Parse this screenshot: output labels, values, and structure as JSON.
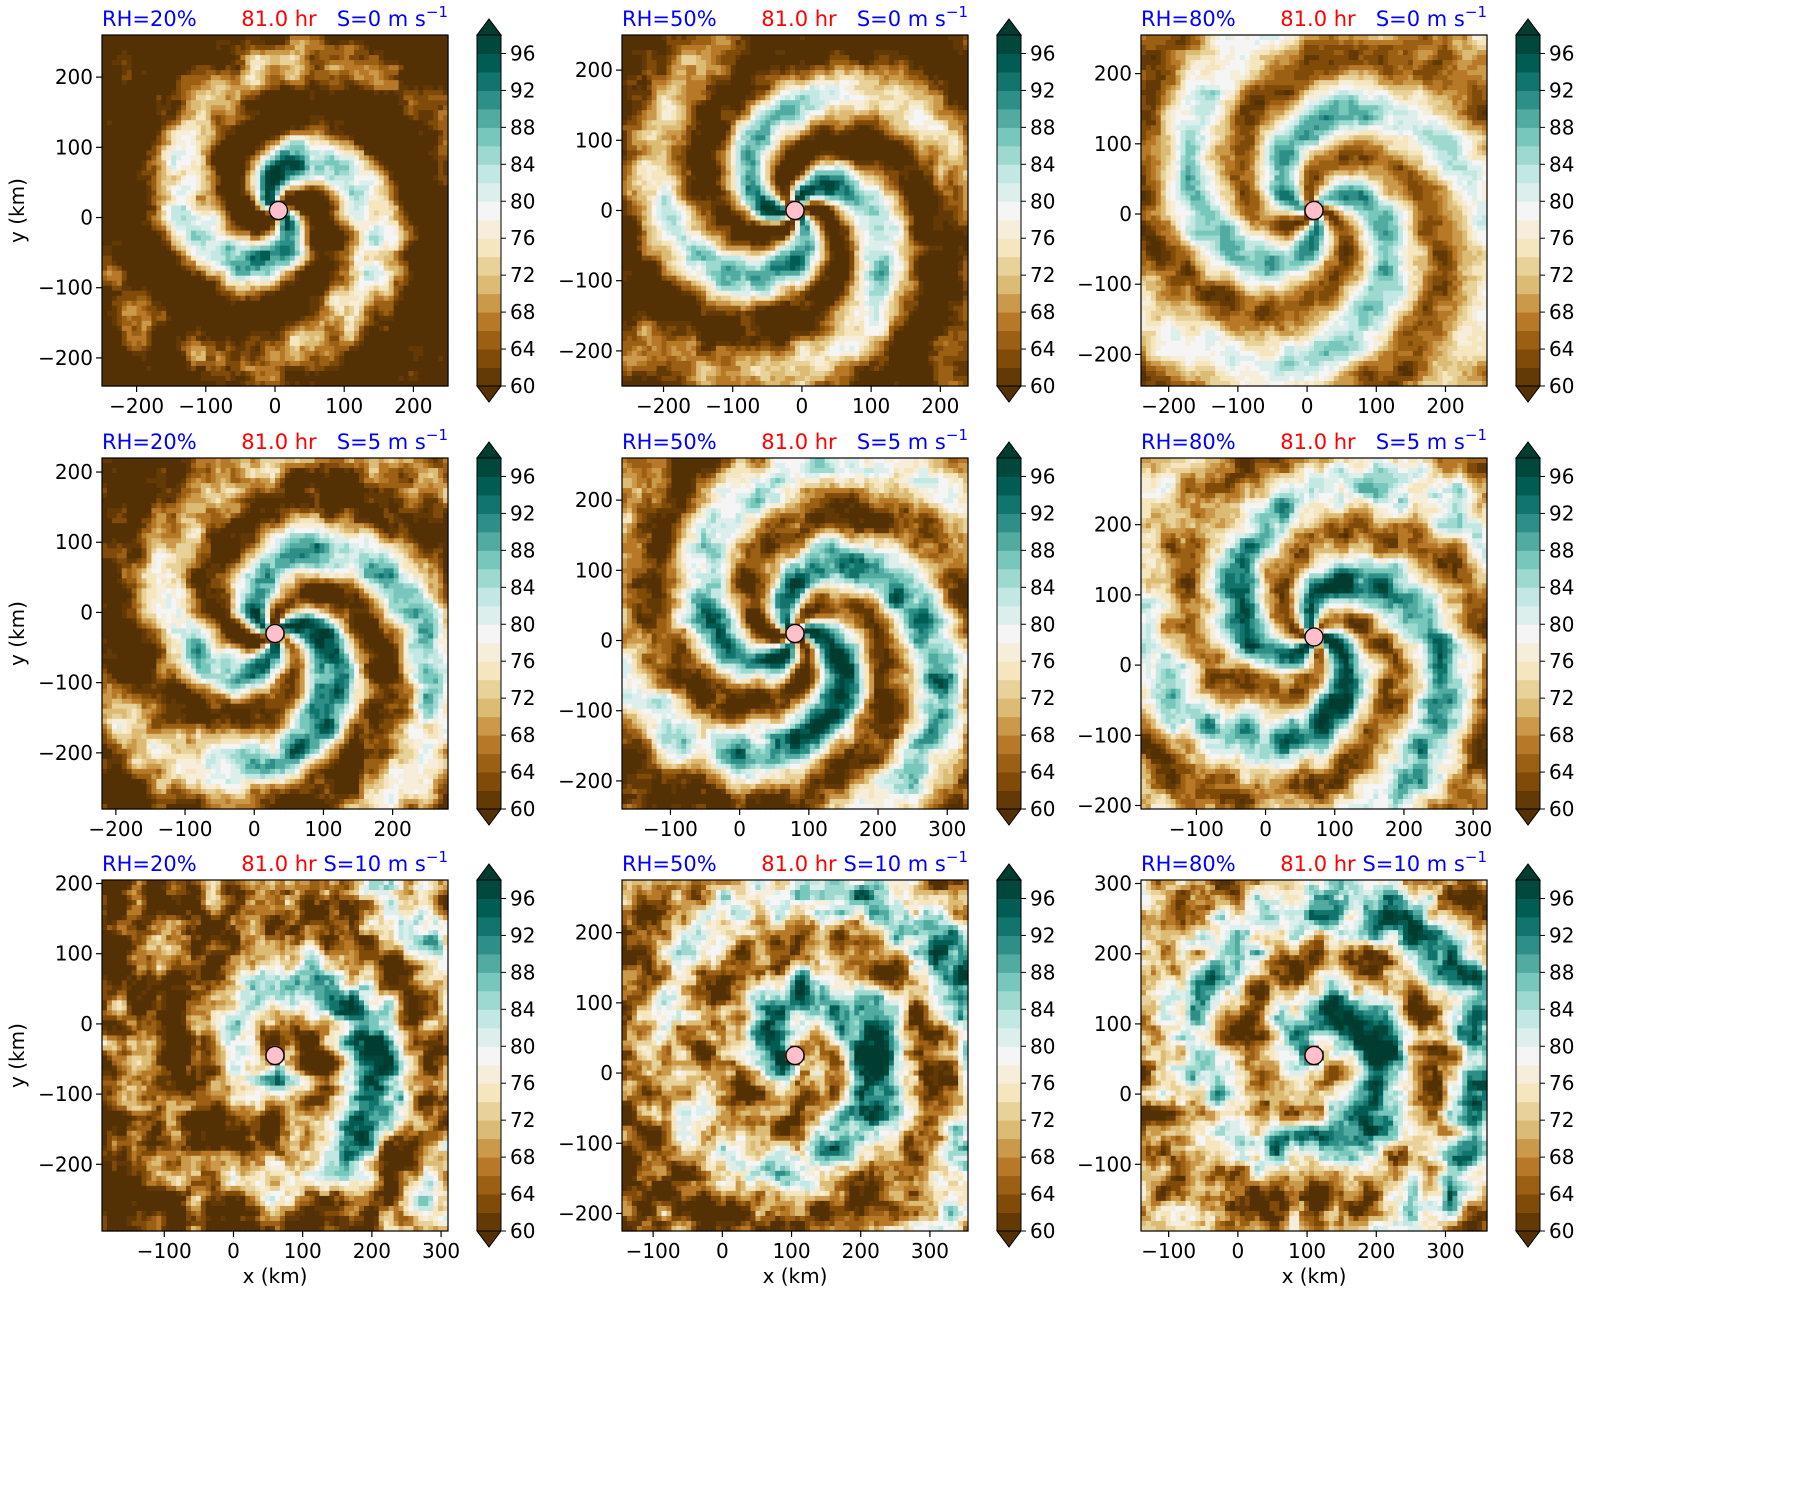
{
  "figure": {
    "colormap": "BrBG",
    "panel_time": "81.0 hr",
    "title_colors": {
      "rh": "#0000ff",
      "time": "#ff0000",
      "shear": "#0000ff"
    },
    "center_marker_color": "#ffc0cb"
  },
  "chart_data": [
    {
      "type": "heatmap",
      "title_rh": "RH=20%",
      "title_time": "81.0 hr",
      "title_shear": "S=0 m s",
      "title_shear_exp": "−1",
      "xlim": [
        -250,
        250
      ],
      "ylim": [
        -240,
        260
      ],
      "xticks": [
        -200,
        -100,
        0,
        100,
        200
      ],
      "xticklabels": [
        "−200",
        "−100",
        "0",
        "100",
        "200"
      ],
      "yticks": [
        -200,
        -100,
        0,
        100,
        200
      ],
      "yticklabels": [
        "−200",
        "−100",
        "0",
        "100",
        "200"
      ],
      "ylabel": "y (km)",
      "xlabel": "",
      "center": [
        5,
        10
      ],
      "pattern": "spiral-compact",
      "colorbar": {
        "ticks": [
          "96",
          "92",
          "88",
          "84",
          "80",
          "76",
          "72",
          "68",
          "64",
          "60"
        ],
        "range": [
          60,
          98
        ],
        "extend": "both"
      }
    },
    {
      "type": "heatmap",
      "title_rh": "RH=50%",
      "title_time": "81.0 hr",
      "title_shear": "S=0 m s",
      "title_shear_exp": "−1",
      "xlim": [
        -260,
        240
      ],
      "ylim": [
        -250,
        250
      ],
      "xticks": [
        -200,
        -100,
        0,
        100,
        200
      ],
      "xticklabels": [
        "−200",
        "−100",
        "0",
        "100",
        "200"
      ],
      "yticks": [
        -200,
        -100,
        0,
        100,
        200
      ],
      "yticklabels": [
        "−200",
        "−100",
        "0",
        "100",
        "200"
      ],
      "ylabel": "",
      "xlabel": "",
      "center": [
        -10,
        0
      ],
      "pattern": "spiral",
      "colorbar": {
        "ticks": [
          "96",
          "92",
          "88",
          "84",
          "80",
          "76",
          "72",
          "68",
          "64",
          "60"
        ],
        "range": [
          60,
          98
        ],
        "extend": "both"
      }
    },
    {
      "type": "heatmap",
      "title_rh": "RH=80%",
      "title_time": "81.0 hr",
      "title_shear": "S=0 m s",
      "title_shear_exp": "−1",
      "xlim": [
        -240,
        260
      ],
      "ylim": [
        -245,
        255
      ],
      "xticks": [
        -200,
        -100,
        0,
        100,
        200
      ],
      "xticklabels": [
        "−200",
        "−100",
        "0",
        "100",
        "200"
      ],
      "yticks": [
        -200,
        -100,
        0,
        100,
        200
      ],
      "yticklabels": [
        "−200",
        "−100",
        "0",
        "100",
        "200"
      ],
      "ylabel": "",
      "xlabel": "",
      "center": [
        10,
        5
      ],
      "pattern": "spiral-wide",
      "colorbar": {
        "ticks": [
          "96",
          "92",
          "88",
          "84",
          "80",
          "76",
          "72",
          "68",
          "64",
          "60"
        ],
        "range": [
          60,
          98
        ],
        "extend": "both"
      }
    },
    {
      "type": "heatmap",
      "title_rh": "RH=20%",
      "title_time": "81.0 hr",
      "title_shear": "S=5 m s",
      "title_shear_exp": "−1",
      "xlim": [
        -220,
        280
      ],
      "ylim": [
        -280,
        220
      ],
      "xticks": [
        -200,
        -100,
        0,
        100,
        200
      ],
      "xticklabels": [
        "−200",
        "−100",
        "0",
        "100",
        "200"
      ],
      "yticks": [
        -200,
        -100,
        0,
        100,
        200
      ],
      "yticklabels": [
        "−200",
        "−100",
        "0",
        "100",
        "200"
      ],
      "ylabel": "y (km)",
      "xlabel": "",
      "center": [
        30,
        -30
      ],
      "pattern": "sheared-light",
      "colorbar": {
        "ticks": [
          "96",
          "92",
          "88",
          "84",
          "80",
          "76",
          "72",
          "68",
          "64",
          "60"
        ],
        "range": [
          60,
          98
        ],
        "extend": "both"
      }
    },
    {
      "type": "heatmap",
      "title_rh": "RH=50%",
      "title_time": "81.0 hr",
      "title_shear": "S=5 m s",
      "title_shear_exp": "−1",
      "xlim": [
        -170,
        330
      ],
      "ylim": [
        -240,
        260
      ],
      "xticks": [
        -100,
        0,
        100,
        200,
        300
      ],
      "xticklabels": [
        "−100",
        "0",
        "100",
        "200",
        "300"
      ],
      "yticks": [
        -200,
        -100,
        0,
        100,
        200
      ],
      "yticklabels": [
        "−200",
        "−100",
        "0",
        "100",
        "200"
      ],
      "ylabel": "",
      "xlabel": "",
      "center": [
        80,
        10
      ],
      "pattern": "sheared",
      "colorbar": {
        "ticks": [
          "96",
          "92",
          "88",
          "84",
          "80",
          "76",
          "72",
          "68",
          "64",
          "60"
        ],
        "range": [
          60,
          98
        ],
        "extend": "both"
      }
    },
    {
      "type": "heatmap",
      "title_rh": "RH=80%",
      "title_time": "81.0 hr",
      "title_shear": "S=5 m s",
      "title_shear_exp": "−1",
      "xlim": [
        -180,
        320
      ],
      "ylim": [
        -205,
        295
      ],
      "xticks": [
        -100,
        0,
        100,
        200,
        300
      ],
      "xticklabels": [
        "−100",
        "0",
        "100",
        "200",
        "300"
      ],
      "yticks": [
        -200,
        -100,
        0,
        100,
        200
      ],
      "yticklabels": [
        "−200",
        "−100",
        "0",
        "100",
        "200"
      ],
      "ylabel": "",
      "xlabel": "",
      "center": [
        70,
        40
      ],
      "pattern": "sheared-moist",
      "colorbar": {
        "ticks": [
          "96",
          "92",
          "88",
          "84",
          "80",
          "76",
          "72",
          "68",
          "64",
          "60"
        ],
        "range": [
          60,
          98
        ],
        "extend": "both"
      }
    },
    {
      "type": "heatmap",
      "title_rh": "RH=20%",
      "title_time": "81.0 hr",
      "title_shear": "S=10 m s",
      "title_shear_exp": "−1",
      "xlim": [
        -190,
        310
      ],
      "ylim": [
        -295,
        205
      ],
      "xticks": [
        -100,
        0,
        100,
        200,
        300
      ],
      "xticklabels": [
        "−100",
        "0",
        "100",
        "200",
        "300"
      ],
      "yticks": [
        -200,
        -100,
        0,
        100,
        200
      ],
      "yticklabels": [
        "−200",
        "−100",
        "0",
        "100",
        "200"
      ],
      "ylabel": "y (km)",
      "xlabel": "x (km)",
      "center": [
        60,
        -45
      ],
      "pattern": "strong-shear-dry",
      "colorbar": {
        "ticks": [
          "96",
          "92",
          "88",
          "84",
          "80",
          "76",
          "72",
          "68",
          "64",
          "60"
        ],
        "range": [
          60,
          98
        ],
        "extend": "both"
      }
    },
    {
      "type": "heatmap",
      "title_rh": "RH=50%",
      "title_time": "81.0 hr",
      "title_shear": "S=10 m s",
      "title_shear_exp": "−1",
      "xlim": [
        -145,
        355
      ],
      "ylim": [
        -225,
        275
      ],
      "xticks": [
        -100,
        0,
        100,
        200,
        300
      ],
      "xticklabels": [
        "−100",
        "0",
        "100",
        "200",
        "300"
      ],
      "yticks": [
        -200,
        -100,
        0,
        100,
        200
      ],
      "yticklabels": [
        "−200",
        "−100",
        "0",
        "100",
        "200"
      ],
      "ylabel": "",
      "xlabel": "x (km)",
      "center": [
        105,
        25
      ],
      "pattern": "strong-shear",
      "colorbar": {
        "ticks": [
          "96",
          "92",
          "88",
          "84",
          "80",
          "76",
          "72",
          "68",
          "64",
          "60"
        ],
        "range": [
          60,
          98
        ],
        "extend": "both"
      }
    },
    {
      "type": "heatmap",
      "title_rh": "RH=80%",
      "title_time": "81.0 hr",
      "title_shear": "S=10 m s",
      "title_shear_exp": "−1",
      "xlim": [
        -140,
        360
      ],
      "ylim": [
        -195,
        305
      ],
      "xticks": [
        -100,
        0,
        100,
        200,
        300
      ],
      "xticklabels": [
        "−100",
        "0",
        "100",
        "200",
        "300"
      ],
      "yticks": [
        -100,
        0,
        100,
        200,
        300
      ],
      "yticklabels": [
        "−100",
        "0",
        "100",
        "200",
        "300"
      ],
      "ylabel": "",
      "xlabel": "x (km)",
      "center": [
        110,
        55
      ],
      "pattern": "strong-shear-moist",
      "colorbar": {
        "ticks": [
          "96",
          "92",
          "88",
          "84",
          "80",
          "76",
          "72",
          "68",
          "64",
          "60"
        ],
        "range": [
          60,
          98
        ],
        "extend": "both"
      }
    }
  ]
}
